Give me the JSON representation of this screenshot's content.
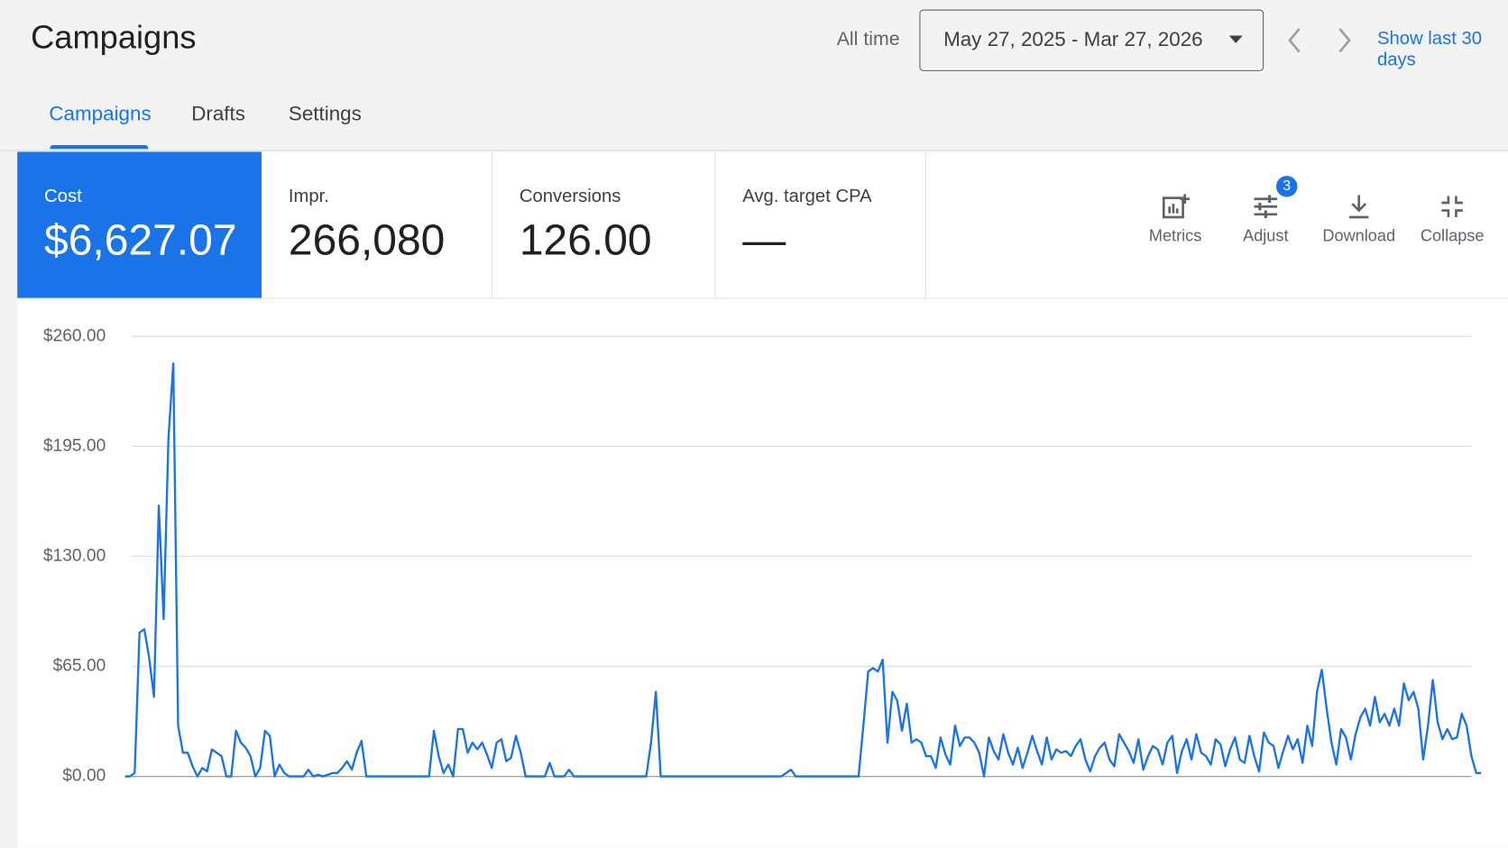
{
  "header": {
    "title": "Campaigns",
    "range_label": "All time",
    "date_range": "May 27, 2025 - Mar 27, 2026",
    "shortcut": "Show last 30 days"
  },
  "tabs": [
    "Campaigns",
    "Drafts",
    "Settings"
  ],
  "metrics": [
    {
      "label": "Cost",
      "value": "$6,627.07"
    },
    {
      "label": "Impr.",
      "value": "266,080"
    },
    {
      "label": "Conversions",
      "value": "126.00"
    },
    {
      "label": "Avg. target CPA",
      "value": "—"
    }
  ],
  "toolbar": [
    {
      "label": "Metrics"
    },
    {
      "label": "Adjust",
      "badge": 3
    },
    {
      "label": "Download"
    },
    {
      "label": "Collapse"
    }
  ],
  "chart_data": {
    "type": "line",
    "ylim": [
      0,
      260
    ],
    "yticks": [
      {
        "value": 0,
        "label": "$0.00"
      },
      {
        "value": 65,
        "label": "$65.00"
      },
      {
        "value": 130,
        "label": "$130.00"
      },
      {
        "value": 195,
        "label": "$195.00"
      },
      {
        "value": 260,
        "label": "$260.00"
      }
    ],
    "grid": true,
    "series": [
      {
        "color": "#1a73e8",
        "values": [
          0,
          0,
          2,
          85,
          87,
          70,
          47,
          160,
          93,
          200,
          244,
          30,
          14,
          14,
          6,
          0,
          5,
          3,
          16,
          14,
          12,
          0,
          0,
          27,
          20,
          17,
          12,
          0,
          5,
          27,
          24,
          0,
          7,
          2,
          0,
          0,
          0,
          0,
          4,
          0,
          1,
          0,
          1,
          2,
          2,
          5,
          9,
          4,
          14,
          21,
          0,
          0,
          0,
          0,
          0,
          0,
          0,
          0,
          0,
          0,
          0,
          0,
          0,
          0,
          27,
          12,
          2,
          7,
          0,
          28,
          28,
          14,
          20,
          16,
          20,
          13,
          5,
          20,
          22,
          9,
          11,
          24,
          14,
          0,
          0,
          0,
          0,
          0,
          8,
          0,
          0,
          0,
          4,
          0,
          0,
          0,
          0,
          0,
          0,
          0,
          0,
          0,
          0,
          0,
          0,
          0,
          0,
          0,
          0,
          20,
          50,
          0,
          0,
          0,
          0,
          0,
          0,
          0,
          0,
          0,
          0,
          0,
          0,
          0,
          0,
          0,
          0,
          0,
          0,
          0,
          0,
          0,
          0,
          0,
          0,
          0,
          0,
          2,
          4,
          0,
          0,
          0,
          0,
          0,
          0,
          0,
          0,
          0,
          0,
          0,
          0,
          0,
          0,
          30,
          62,
          64,
          62,
          69,
          20,
          50,
          45,
          27,
          43,
          20,
          22,
          20,
          12,
          12,
          5,
          23,
          13,
          7,
          30,
          18,
          23,
          23,
          20,
          14,
          0,
          23,
          15,
          10,
          25,
          14,
          7,
          17,
          5,
          14,
          24,
          15,
          7,
          23,
          10,
          16,
          14,
          15,
          12,
          18,
          22,
          10,
          3,
          12,
          17,
          20,
          10,
          6,
          25,
          20,
          15,
          8,
          22,
          4,
          12,
          18,
          16,
          7,
          20,
          24,
          2,
          15,
          22,
          10,
          25,
          14,
          12,
          7,
          22,
          19,
          6,
          16,
          23,
          10,
          8,
          24,
          12,
          3,
          26,
          20,
          18,
          5,
          15,
          24,
          16,
          22,
          8,
          30,
          18,
          50,
          63,
          40,
          20,
          7,
          28,
          23,
          10,
          25,
          35,
          40,
          30,
          47,
          32,
          37,
          30,
          40,
          30,
          55,
          45,
          50,
          40,
          10,
          30,
          57,
          32,
          22,
          28,
          22,
          23,
          37,
          30,
          12,
          2,
          2
        ]
      }
    ]
  }
}
